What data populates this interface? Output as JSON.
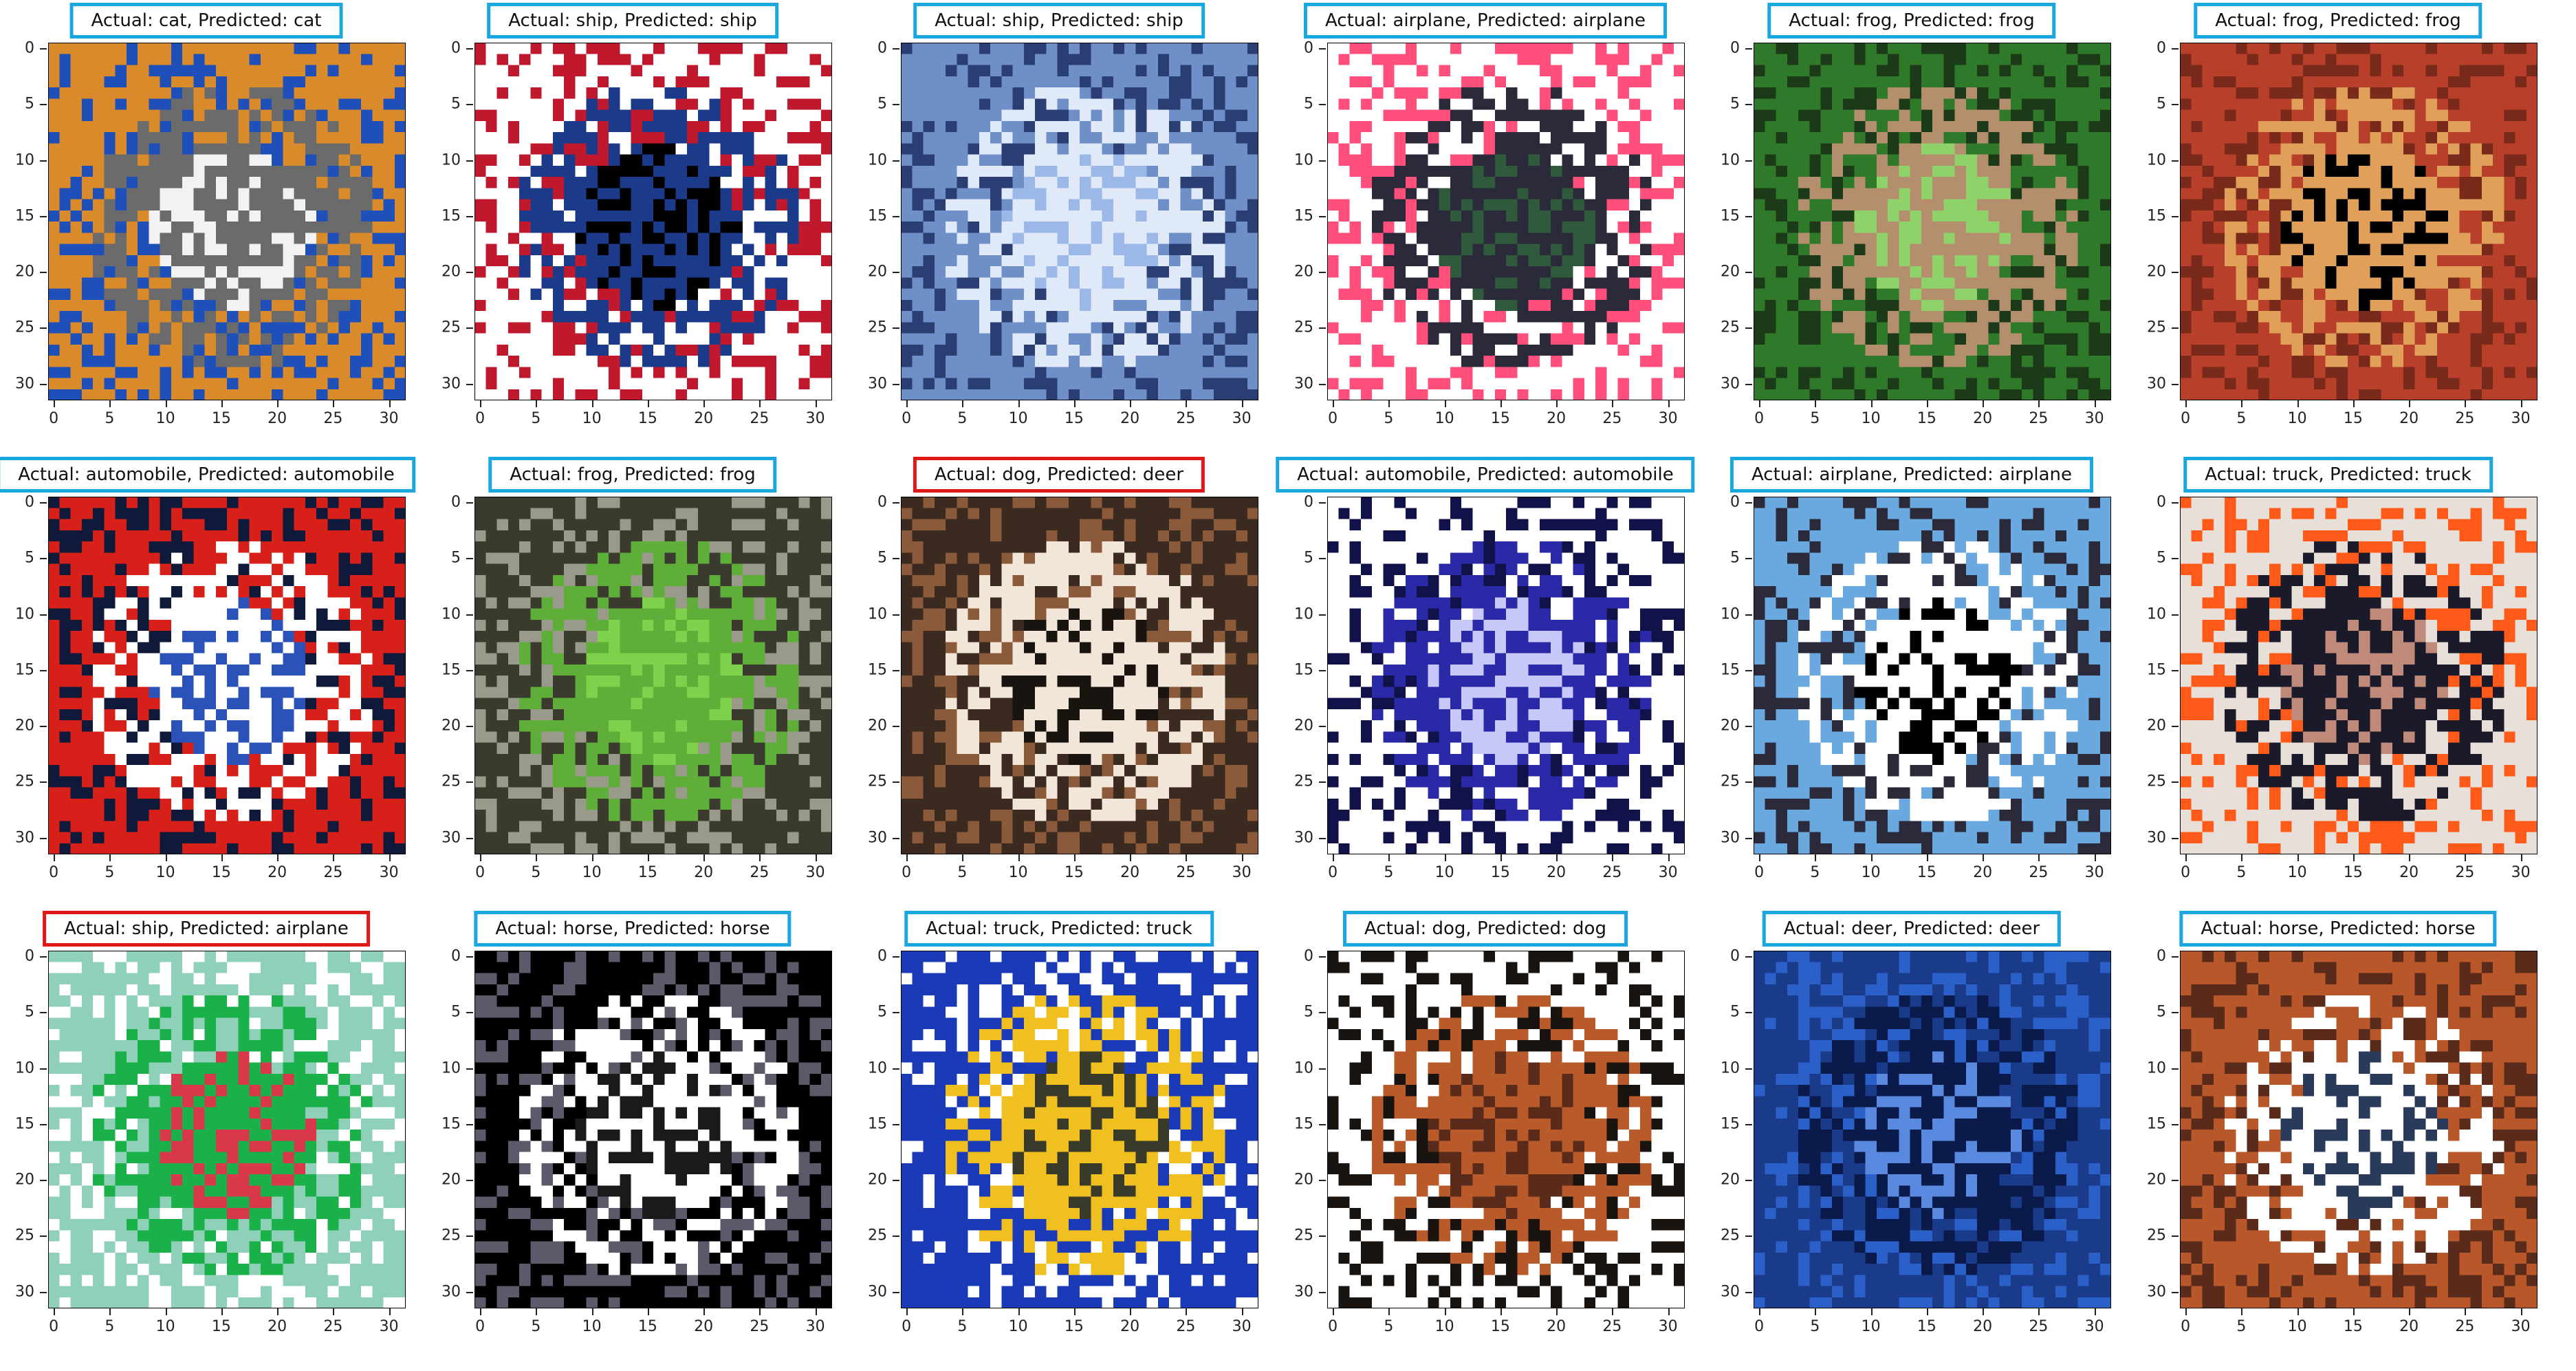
{
  "figure": {
    "axis_ticks": [
      "0",
      "5",
      "10",
      "15",
      "20",
      "25",
      "30"
    ],
    "border_correct": "#1aa7e0",
    "border_wrong": "#e01818",
    "panels": [
      {
        "title": "Actual: cat, Predicted: cat",
        "actual": "cat",
        "predicted": "cat",
        "correct": true,
        "icon": "cat-photo-icon",
        "colors": [
          "#d98a2a",
          "#6b6b6b",
          "#1f4fb8",
          "#f2f2f2"
        ]
      },
      {
        "title": "Actual: ship, Predicted: ship",
        "actual": "ship",
        "predicted": "ship",
        "correct": true,
        "icon": "ship-photo-icon",
        "colors": [
          "#ffffff",
          "#1b3a8a",
          "#c0182c",
          "#000000"
        ]
      },
      {
        "title": "Actual: ship, Predicted: ship",
        "actual": "ship",
        "predicted": "ship",
        "correct": true,
        "icon": "ship-photo-icon",
        "colors": [
          "#6f8fc9",
          "#dfe9f7",
          "#2a3e73",
          "#9bb8e8"
        ]
      },
      {
        "title": "Actual: airplane, Predicted: airplane",
        "actual": "airplane",
        "predicted": "airplane",
        "correct": true,
        "icon": "airplane-photo-icon",
        "colors": [
          "#ffffff",
          "#2a2a3a",
          "#ff4f7a",
          "#2f5a3c"
        ]
      },
      {
        "title": "Actual: frog, Predicted: frog",
        "actual": "frog",
        "predicted": "frog",
        "correct": true,
        "icon": "frog-photo-icon",
        "colors": [
          "#2f7a2a",
          "#b48f6e",
          "#1d3a18",
          "#8fd26a"
        ]
      },
      {
        "title": "Actual: frog, Predicted: frog",
        "actual": "frog",
        "predicted": "frog",
        "correct": true,
        "icon": "frog-photo-icon",
        "colors": [
          "#b8402a",
          "#e0a05a",
          "#7a2a1a",
          "#000000"
        ]
      },
      {
        "title": "Actual: automobile, Predicted: automobile",
        "actual": "automobile",
        "predicted": "automobile",
        "correct": true,
        "icon": "car-photo-icon",
        "colors": [
          "#d8201a",
          "#ffffff",
          "#0f1a3a",
          "#2a52b8"
        ]
      },
      {
        "title": "Actual: frog, Predicted: frog",
        "actual": "frog",
        "predicted": "frog",
        "correct": true,
        "icon": "frog-photo-icon",
        "colors": [
          "#3a3a2e",
          "#5fae3a",
          "#9a9a8a",
          "#7fd04a"
        ]
      },
      {
        "title": "Actual: dog, Predicted: deer",
        "actual": "dog",
        "predicted": "deer",
        "correct": false,
        "icon": "dog-photo-icon",
        "colors": [
          "#3a2a20",
          "#f2e6d8",
          "#8a5a3a",
          "#1a1410"
        ]
      },
      {
        "title": "Actual: automobile, Predicted: automobile",
        "actual": "automobile",
        "predicted": "automobile",
        "correct": true,
        "icon": "car-photo-icon",
        "colors": [
          "#ffffff",
          "#2a2aa8",
          "#12124a",
          "#c8c8f8"
        ]
      },
      {
        "title": "Actual: airplane, Predicted: airplane",
        "actual": "airplane",
        "predicted": "airplane",
        "correct": true,
        "icon": "airplane-photo-icon",
        "colors": [
          "#6aa8e0",
          "#ffffff",
          "#2a2a3a",
          "#000000"
        ]
      },
      {
        "title": "Actual: truck, Predicted: truck",
        "actual": "truck",
        "predicted": "truck",
        "correct": true,
        "icon": "truck-photo-icon",
        "colors": [
          "#e8e0d8",
          "#1a1a2a",
          "#ff5a1a",
          "#c08a7a"
        ]
      },
      {
        "title": "Actual: ship, Predicted: airplane",
        "actual": "ship",
        "predicted": "airplane",
        "correct": false,
        "icon": "ship-photo-icon",
        "colors": [
          "#8fd0b8",
          "#1ab04a",
          "#ffffff",
          "#d8384a"
        ]
      },
      {
        "title": "Actual: horse, Predicted: horse",
        "actual": "horse",
        "predicted": "horse",
        "correct": true,
        "icon": "horse-photo-icon",
        "colors": [
          "#000000",
          "#ffffff",
          "#5a5a6a",
          "#1a1a1a"
        ]
      },
      {
        "title": "Actual: truck, Predicted: truck",
        "actual": "truck",
        "predicted": "truck",
        "correct": true,
        "icon": "truck-photo-icon",
        "colors": [
          "#1a3ab8",
          "#f0c020",
          "#ffffff",
          "#3a3a2a"
        ]
      },
      {
        "title": "Actual: dog, Predicted: dog",
        "actual": "dog",
        "predicted": "dog",
        "correct": true,
        "icon": "dog-photo-icon",
        "colors": [
          "#ffffff",
          "#b85a2a",
          "#1a1410",
          "#5a2a1a"
        ]
      },
      {
        "title": "Actual: deer, Predicted: deer",
        "actual": "deer",
        "predicted": "deer",
        "correct": true,
        "icon": "deer-photo-icon",
        "colors": [
          "#1a3a8a",
          "#0a1a4a",
          "#2a60c8",
          "#5a8ae0"
        ]
      },
      {
        "title": "Actual: horse, Predicted: horse",
        "actual": "horse",
        "predicted": "horse",
        "correct": true,
        "icon": "horse-photo-icon",
        "colors": [
          "#b8582a",
          "#ffffff",
          "#5a2a1a",
          "#2a3a5a"
        ]
      }
    ]
  }
}
